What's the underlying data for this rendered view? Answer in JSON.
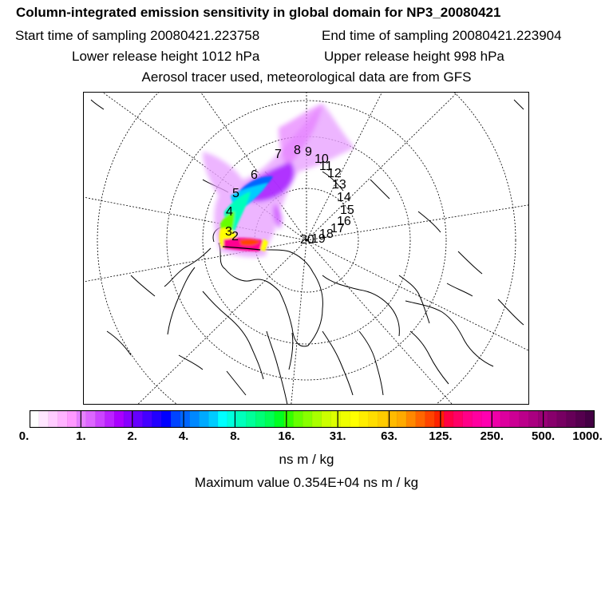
{
  "header": {
    "title": "Column-integrated emission sensitivity in global domain for NP3_20080421",
    "start_label": "Start time of sampling 20080421.223758",
    "end_label": "End time of sampling 20080421.223904",
    "lower_label": "Lower release height 1012 hPa",
    "upper_label": "Upper release height  998 hPa",
    "tracer_label": "Aerosol tracer used, meteorological data are from GFS"
  },
  "map": {
    "projection": "north polar stereographic",
    "day_markers": [
      "2",
      "3",
      "4",
      "5",
      "6",
      "7",
      "8",
      "9",
      "10",
      "11",
      "12",
      "13",
      "14",
      "15",
      "16",
      "17",
      "18",
      "19",
      "20"
    ],
    "colors": {
      "plume_core": "#ff0090",
      "coastline": "#000000",
      "grid": "#000000"
    }
  },
  "colorbar": {
    "tick_labels": [
      "0.",
      "1.",
      "2.",
      "4.",
      "8.",
      "16.",
      "31.",
      "63.",
      "125.",
      "250.",
      "500.",
      "1000."
    ],
    "colors": [
      "#ffffff",
      "#ffe6ff",
      "#ffccff",
      "#ffb3ff",
      "#ff99ff",
      "#e680ff",
      "#dd66ff",
      "#cc44ff",
      "#bb22ff",
      "#aa00ff",
      "#8800ff",
      "#6600ff",
      "#4400ff",
      "#2200ff",
      "#0000ff",
      "#0044ff",
      "#0066ff",
      "#0088ff",
      "#00aaff",
      "#00ccff",
      "#00ffff",
      "#00ffdd",
      "#00ffbb",
      "#00ff99",
      "#00ff77",
      "#00ff55",
      "#00ff22",
      "#33ff00",
      "#66ff00",
      "#88ff00",
      "#aaff00",
      "#ccff00",
      "#ddff00",
      "#eeff00",
      "#ffff00",
      "#ffee00",
      "#ffdd00",
      "#ffcc00",
      "#ffbb00",
      "#ffaa00",
      "#ff8800",
      "#ff6600",
      "#ff4400",
      "#ff2200",
      "#ff0044",
      "#ff0066",
      "#ff0088",
      "#ff00a0",
      "#ff00b0",
      "#ee00a8",
      "#dd009e",
      "#cc0094",
      "#bb008a",
      "#aa0080",
      "#990076",
      "#88006c",
      "#770062",
      "#660058",
      "#55004e",
      "#440044"
    ],
    "unit": "ns m / kg",
    "max_label": "Maximum value  0.354E+04 ns m / kg"
  }
}
